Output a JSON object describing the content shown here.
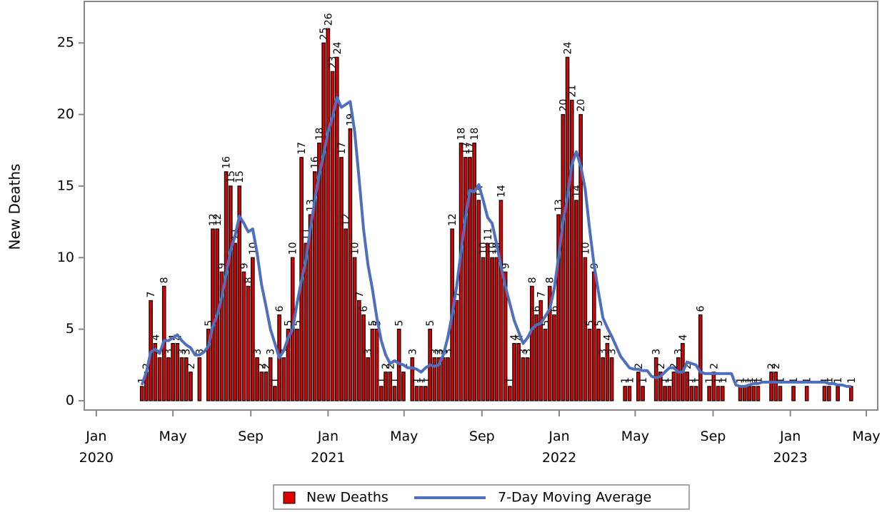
{
  "chart_data": {
    "type": "bar",
    "ylabel": "New Deaths",
    "xlim": [
      -19,
      1234
    ],
    "ylim": [
      -0.65,
      27.9
    ],
    "yticks": [
      0,
      5,
      10,
      15,
      20,
      25
    ],
    "xticks": [
      {
        "value": 0,
        "label": "Jan 2020"
      },
      {
        "value": 121,
        "label": "May"
      },
      {
        "value": 244,
        "label": "Sep"
      },
      {
        "value": 366,
        "label": "Jan 2021"
      },
      {
        "value": 486,
        "label": "May"
      },
      {
        "value": 609,
        "label": "Sep"
      },
      {
        "value": 731,
        "label": "Jan 2022"
      },
      {
        "value": 851,
        "label": "May"
      },
      {
        "value": 974,
        "label": "Sep"
      },
      {
        "value": 1096,
        "label": "Jan 2023"
      },
      {
        "value": 1216,
        "label": "May"
      }
    ],
    "x": [
      72,
      79,
      86,
      93,
      100,
      107,
      114,
      121,
      128,
      135,
      142,
      149,
      156,
      163,
      170,
      177,
      184,
      191,
      198,
      205,
      212,
      219,
      226,
      233,
      240,
      247,
      254,
      261,
      268,
      275,
      282,
      289,
      296,
      303,
      310,
      317,
      324,
      331,
      338,
      345,
      352,
      359,
      366,
      373,
      380,
      387,
      394,
      401,
      408,
      415,
      422,
      429,
      436,
      443,
      450,
      457,
      464,
      471,
      478,
      485,
      492,
      499,
      506,
      513,
      520,
      527,
      534,
      541,
      548,
      555,
      562,
      569,
      576,
      583,
      590,
      597,
      604,
      611,
      618,
      625,
      632,
      639,
      646,
      653,
      660,
      667,
      674,
      681,
      688,
      695,
      702,
      709,
      716,
      723,
      730,
      737,
      744,
      751,
      758,
      765,
      772,
      779,
      786,
      793,
      800,
      807,
      814,
      821,
      828,
      835,
      842,
      849,
      856,
      863,
      870,
      877,
      884,
      891,
      898,
      905,
      912,
      919,
      926,
      933,
      940,
      947,
      954,
      961,
      968,
      975,
      982,
      989,
      996,
      1003,
      1010,
      1017,
      1024,
      1031,
      1038,
      1045,
      1052,
      1059,
      1066,
      1073,
      1080,
      1087,
      1094,
      1101,
      1108,
      1115,
      1122,
      1129,
      1136,
      1143,
      1150,
      1157,
      1164,
      1171,
      1178,
      1185,
      1192
    ],
    "series": [
      {
        "name": "New Deaths",
        "type": "bar",
        "color": "#e00000",
        "values": [
          1,
          2,
          7,
          4,
          3,
          8,
          3,
          4,
          4,
          3,
          3,
          2,
          null,
          3,
          null,
          5,
          12,
          12,
          9,
          16,
          15,
          11,
          15,
          9,
          8,
          10,
          3,
          2,
          2,
          3,
          1,
          6,
          3,
          5,
          10,
          5,
          17,
          11,
          13,
          16,
          18,
          25,
          26,
          23,
          24,
          17,
          12,
          19,
          10,
          7,
          6,
          3,
          5,
          5,
          1,
          2,
          2,
          1,
          5,
          2,
          null,
          3,
          1,
          1,
          1,
          5,
          3,
          3,
          3,
          3,
          12,
          7,
          18,
          17,
          17,
          18,
          14,
          10,
          11,
          10,
          10,
          14,
          9,
          1,
          4,
          4,
          3,
          3,
          8,
          6,
          7,
          5,
          8,
          6,
          13,
          20,
          24,
          21,
          14,
          20,
          10,
          5,
          9,
          5,
          3,
          4,
          3,
          null,
          null,
          1,
          1,
          null,
          2,
          1,
          null,
          null,
          3,
          2,
          1,
          1,
          2,
          3,
          4,
          2,
          1,
          1,
          6,
          null,
          1,
          2,
          1,
          1,
          null,
          null,
          null,
          1,
          1,
          1,
          1,
          1,
          null,
          null,
          2,
          2,
          1,
          null,
          null,
          1,
          null,
          null,
          1,
          null,
          null,
          null,
          1,
          1,
          null,
          1,
          null,
          null,
          1
        ]
      },
      {
        "name": "7-Day Moving Average",
        "type": "line",
        "color": "#4f6fbe",
        "values": [
          1.1,
          2.0,
          3.4,
          3.6,
          3.3,
          4.2,
          4.2,
          4.4,
          4.6,
          4.2,
          3.9,
          3.7,
          3.2,
          3.2,
          3.4,
          3.8,
          5.2,
          6.0,
          7.2,
          8.8,
          10.5,
          11.5,
          12.9,
          12.4,
          11.8,
          12.0,
          10.3,
          8.1,
          6.6,
          5.0,
          4.0,
          3.0,
          3.5,
          4.4,
          5.0,
          6.8,
          8.4,
          9.8,
          12.0,
          14.0,
          15.8,
          17.2,
          18.8,
          19.8,
          21.2,
          20.5,
          20.7,
          20.9,
          18.8,
          15.5,
          12.0,
          9.5,
          7.8,
          5.8,
          4.2,
          3.2,
          2.6,
          2.8,
          2.6,
          2.5,
          2.3,
          2.3,
          2.2,
          2.0,
          2.3,
          2.5,
          2.4,
          2.5,
          3.2,
          4.4,
          6.0,
          8.0,
          10.4,
          12.8,
          14.7,
          14.6,
          15.1,
          14.0,
          12.8,
          12.4,
          11.0,
          9.4,
          8.0,
          6.8,
          5.6,
          4.8,
          4.0,
          4.4,
          5.0,
          5.3,
          5.4,
          5.9,
          6.4,
          7.8,
          10.0,
          12.5,
          14.2,
          16.5,
          17.4,
          16.4,
          14.8,
          12.0,
          9.5,
          7.6,
          5.8,
          5.1,
          4.5,
          3.8,
          3.1,
          2.7,
          2.3,
          2.2,
          2.2,
          2.1,
          2.1,
          1.7,
          1.6,
          1.7,
          2.0,
          2.3,
          2.3,
          2.0,
          2.0,
          2.7,
          2.6,
          2.5,
          2.0,
          1.9,
          1.9,
          1.9,
          1.9,
          1.9,
          1.9,
          1.9,
          1.1,
          1.0,
          1.0,
          1.1,
          1.2,
          1.2,
          1.3,
          1.3,
          1.3,
          1.3,
          1.3,
          1.3,
          1.3,
          1.3,
          1.3,
          1.3,
          1.3,
          1.3,
          1.3,
          1.3,
          1.3,
          1.2,
          1.2,
          1.1,
          1.1,
          1.0,
          1.0
        ]
      }
    ]
  }
}
